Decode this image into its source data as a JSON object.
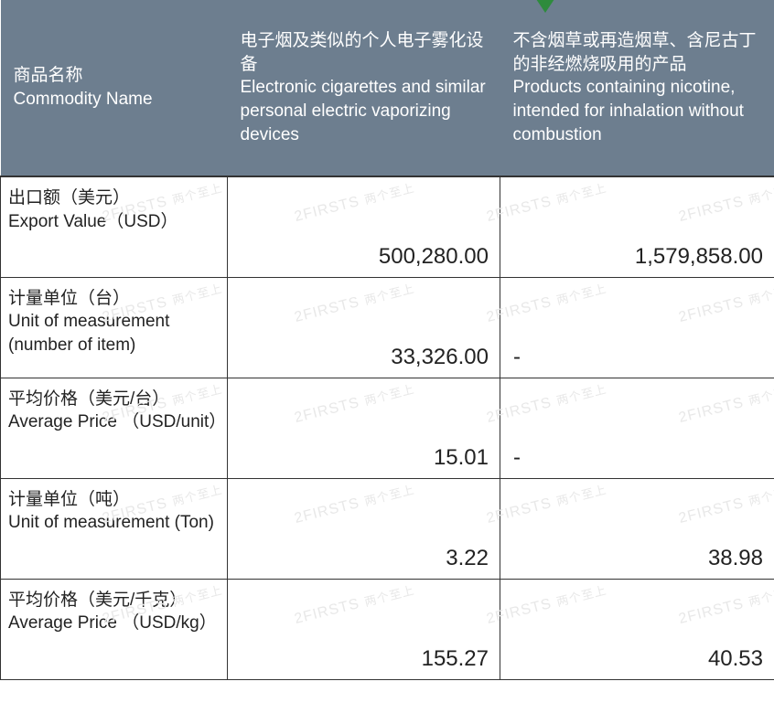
{
  "colors": {
    "header_bg": "#6d7e8f",
    "header_text": "#ffffff",
    "border": "#333333",
    "body_text": "#222222",
    "watermark": "#e8e8e8",
    "arrow": "#2e8b3d"
  },
  "watermark_text": "2FIRSTS",
  "watermark_cn": "两个至上",
  "header": {
    "col0_cn": "商品名称",
    "col0_en": "Commodity Name",
    "col1_cn": "电子烟及类似的个人电子雾化设备",
    "col1_en": "Electronic cigarettes and similar personal electric vaporizing devices",
    "col2_cn": "不含烟草或再造烟草、含尼古丁的非经燃烧吸用的产品",
    "col2_en": "Products containing nicotine, intended for inhalation without combustion"
  },
  "rows": [
    {
      "label_cn": "出口额（美元）",
      "label_en": " Export Value（USD）",
      "v1": "500,280.00",
      "v2": "1,579,858.00"
    },
    {
      "label_cn": "计量单位（台）",
      "label_en": "Unit of measurement (number of item)",
      "v1": "33,326.00",
      "v2": "-"
    },
    {
      "label_cn": "平均价格（美元/台）",
      "label_en": "Average Price （USD/unit）",
      "v1": "15.01",
      "v2": "-"
    },
    {
      "label_cn": "计量单位（吨）",
      "label_en": "Unit of measurement (Ton)",
      "v1": "3.22",
      "v2": "38.98"
    },
    {
      "label_cn": "平均价格（美元/千克）",
      "label_en": "Average Price （USD/kg）",
      "v1": "155.27",
      "v2": "40.53"
    }
  ]
}
